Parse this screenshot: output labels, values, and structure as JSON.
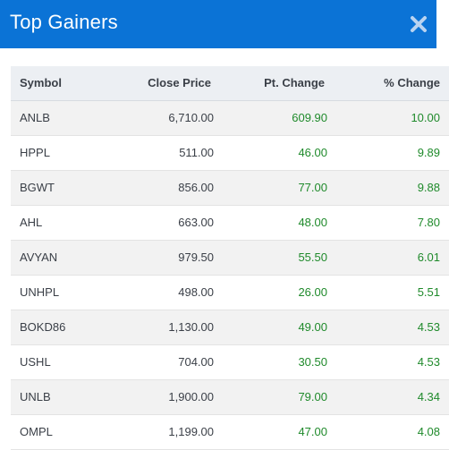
{
  "modal": {
    "title": "Top Gainers",
    "close_icon": "close-icon",
    "accent_color": "#0b73d6",
    "gain_color": "#1f8a2b"
  },
  "table": {
    "headers": {
      "symbol": "Symbol",
      "close_price": "Close Price",
      "pt_change": "Pt. Change",
      "pct_change": "% Change"
    },
    "rows": [
      {
        "symbol": "ANLB",
        "close_price": "6,710.00",
        "pt_change": "609.90",
        "pct_change": "10.00"
      },
      {
        "symbol": "HPPL",
        "close_price": "511.00",
        "pt_change": "46.00",
        "pct_change": "9.89"
      },
      {
        "symbol": "BGWT",
        "close_price": "856.00",
        "pt_change": "77.00",
        "pct_change": "9.88"
      },
      {
        "symbol": "AHL",
        "close_price": "663.00",
        "pt_change": "48.00",
        "pct_change": "7.80"
      },
      {
        "symbol": "AVYAN",
        "close_price": "979.50",
        "pt_change": "55.50",
        "pct_change": "6.01"
      },
      {
        "symbol": "UNHPL",
        "close_price": "498.00",
        "pt_change": "26.00",
        "pct_change": "5.51"
      },
      {
        "symbol": "BOKD86",
        "close_price": "1,130.00",
        "pt_change": "49.00",
        "pct_change": "4.53"
      },
      {
        "symbol": "USHL",
        "close_price": "704.00",
        "pt_change": "30.50",
        "pct_change": "4.53"
      },
      {
        "symbol": "UNLB",
        "close_price": "1,900.00",
        "pt_change": "79.00",
        "pct_change": "4.34"
      },
      {
        "symbol": "OMPL",
        "close_price": "1,199.00",
        "pt_change": "47.00",
        "pct_change": "4.08"
      }
    ]
  }
}
